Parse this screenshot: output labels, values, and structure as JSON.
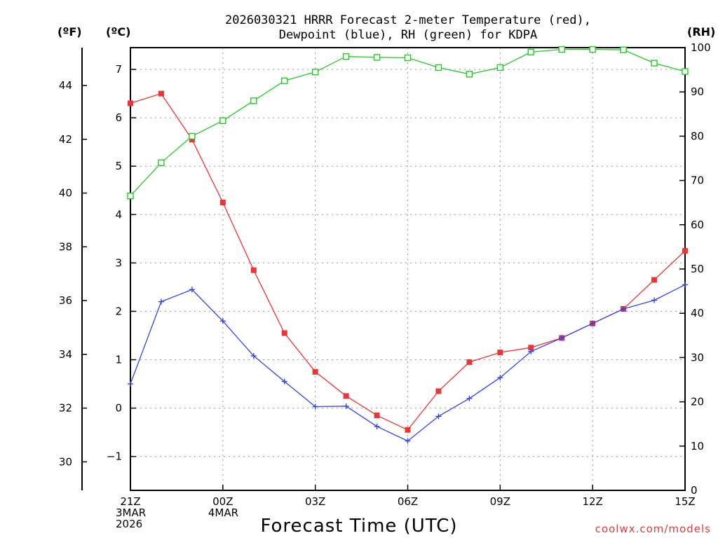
{
  "chart_data": {
    "type": "line",
    "title_line1": "2026030321 HRRR Forecast 2-meter Temperature (red),",
    "title_line2": "Dewpoint (blue), RH (green) for KDPA",
    "xlabel": "Forecast Time (UTC)",
    "credit": "coolwx.com/models",
    "unit_f": "(ºF)",
    "unit_c": "(ºC)",
    "unit_rh": "(RH)",
    "x_ticks": [
      {
        "hour": 0,
        "lines": [
          "21Z",
          "3MAR",
          "2026"
        ]
      },
      {
        "hour": 3,
        "lines": [
          "00Z",
          "4MAR"
        ]
      },
      {
        "hour": 6,
        "lines": [
          "03Z"
        ]
      },
      {
        "hour": 9,
        "lines": [
          "06Z"
        ]
      },
      {
        "hour": 12,
        "lines": [
          "09Z"
        ]
      },
      {
        "hour": 15,
        "lines": [
          "12Z"
        ]
      },
      {
        "hour": 18,
        "lines": [
          "15Z"
        ]
      }
    ],
    "x_range": [
      0,
      18
    ],
    "celsius_range": [
      -1.7,
      7.45
    ],
    "celsius_ticks": [
      -1,
      0,
      1,
      2,
      3,
      4,
      5,
      6,
      7
    ],
    "fahrenheit_ticks": [
      30,
      32,
      34,
      36,
      38,
      40,
      42,
      44
    ],
    "rh_range": [
      0,
      100
    ],
    "rh_ticks": [
      0,
      10,
      20,
      30,
      40,
      50,
      60,
      70,
      80,
      90,
      100
    ],
    "series": [
      {
        "name": "Temperature",
        "color": "#ee3434",
        "marker": "filled-square",
        "axis": "celsius",
        "values": [
          6.3,
          6.5,
          5.55,
          4.25,
          2.85,
          1.55,
          0.75,
          0.25,
          -0.15,
          -0.45,
          0.35,
          0.95,
          1.15,
          1.25,
          1.45,
          1.75,
          2.05,
          2.65,
          3.25
        ]
      },
      {
        "name": "Dewpoint",
        "color": "#3344ee",
        "marker": "plus",
        "axis": "celsius",
        "values": [
          0.5,
          2.2,
          2.45,
          1.8,
          1.08,
          0.55,
          0.03,
          0.04,
          -0.38,
          -0.68,
          -0.17,
          0.2,
          0.63,
          1.17,
          1.45,
          1.75,
          2.05,
          2.23,
          2.55
        ]
      },
      {
        "name": "RH",
        "color": "#22cc22",
        "marker": "open-square",
        "axis": "rh",
        "values": [
          66.5,
          74,
          80,
          83.5,
          88,
          92.5,
          94.5,
          98,
          97.8,
          97.7,
          95.5,
          94,
          95.5,
          99,
          99.6,
          99.6,
          99.5,
          96.5,
          94.6
        ]
      }
    ]
  }
}
